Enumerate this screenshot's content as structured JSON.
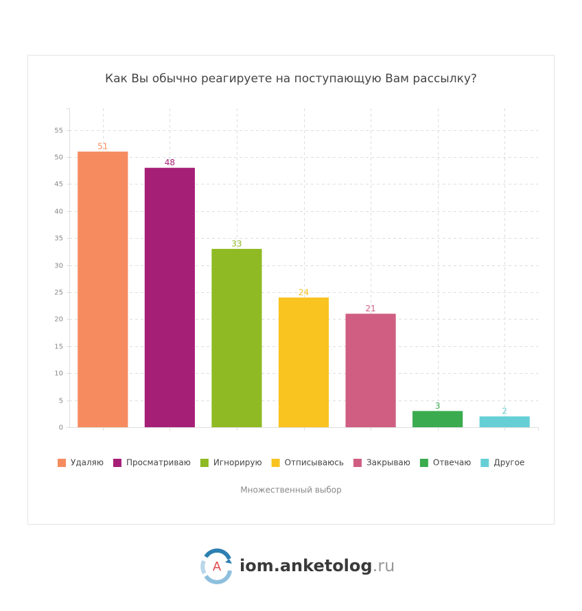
{
  "chart_data": {
    "type": "bar",
    "title": "Как Вы обычно реагируете на поступающую Вам рассылку?",
    "categories": [
      "Удаляю",
      "Просматриваю",
      "Игнорирую",
      "Отписываюсь",
      "Закрываю",
      "Отвечаю",
      "Другое"
    ],
    "values": [
      51,
      48,
      33,
      24,
      21,
      3,
      2
    ],
    "colors": [
      "#f68b5f",
      "#a61f77",
      "#8fba24",
      "#f9c320",
      "#d05e82",
      "#3aab4f",
      "#66cfd6"
    ],
    "ylim": [
      0,
      59
    ],
    "yticks": [
      0,
      5,
      10,
      15,
      20,
      25,
      30,
      35,
      40,
      45,
      50,
      55
    ],
    "grid": true,
    "legend": "bottom"
  },
  "note": "Множественный выбор",
  "logo": {
    "letter": "A",
    "name": "iom.anketolog",
    "tld": ".ru"
  }
}
